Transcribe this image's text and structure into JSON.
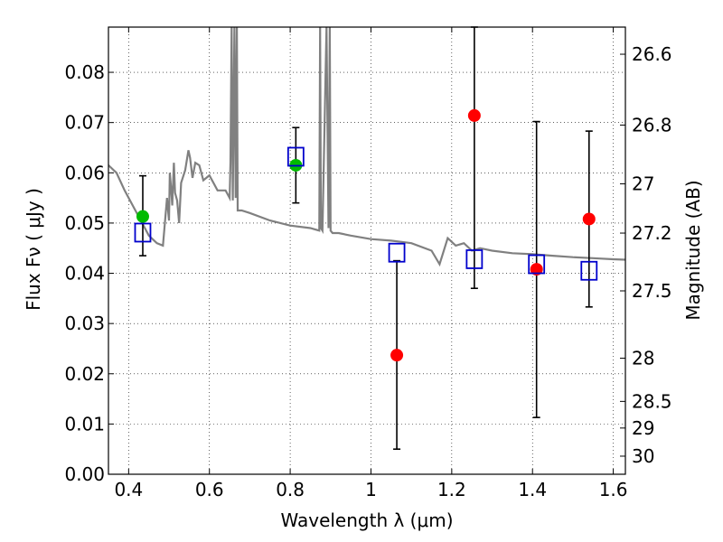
{
  "chart_data": {
    "type": "scatter",
    "xlabel": "Wavelength  λ (μm)",
    "ylabel": "Flux  Fν  ( μJy )",
    "ylabel_right": "Magnitude (AB)",
    "xlim": [
      0.35,
      1.63
    ],
    "ylim": [
      0.0,
      0.089
    ],
    "grid": true,
    "xticks": [
      0.4,
      0.6,
      0.8,
      1.0,
      1.2,
      1.4,
      1.6
    ],
    "xtick_labels": [
      "0.4",
      "0.6",
      "0.8",
      "1",
      "1.2",
      "1.4",
      "1.6"
    ],
    "yticks": [
      0.0,
      0.01,
      0.02,
      0.03,
      0.04,
      0.05,
      0.06,
      0.07,
      0.08
    ],
    "ytick_labels": [
      "0.00",
      "0.01",
      "0.02",
      "0.03",
      "0.04",
      "0.05",
      "0.06",
      "0.07",
      "0.08"
    ],
    "right_ticks": [
      {
        "label": "26.6",
        "flux": 0.0836
      },
      {
        "label": "26.8",
        "flux": 0.0695
      },
      {
        "label": "27",
        "flux": 0.0578
      },
      {
        "label": "27.2",
        "flux": 0.048
      },
      {
        "label": "27.5",
        "flux": 0.0365
      },
      {
        "label": "28",
        "flux": 0.0231
      },
      {
        "label": "28.5",
        "flux": 0.0145
      },
      {
        "label": "29",
        "flux": 0.0092
      },
      {
        "label": "30",
        "flux": 0.0036
      }
    ],
    "colors": {
      "model": "#808080",
      "detections": "#00bb00",
      "other": "#ff0000",
      "model_points": "#0000cc",
      "errorbars": "#000000"
    },
    "series": [
      {
        "marker": "circle",
        "color": "#00bb00",
        "points": [
          {
            "x": 0.435,
            "y": 0.0513,
            "err_low": 0.0435,
            "err_high": 0.0594
          },
          {
            "x": 0.814,
            "y": 0.0615,
            "err_low": 0.054,
            "err_high": 0.069
          }
        ]
      },
      {
        "marker": "circle",
        "color": "#ff0000",
        "points": [
          {
            "x": 1.064,
            "y": 0.0237,
            "err_low": 0.005,
            "err_high": 0.0425
          },
          {
            "x": 1.256,
            "y": 0.0714,
            "err_low": 0.037,
            "err_high": 0.089
          },
          {
            "x": 1.41,
            "y": 0.0408,
            "err_low": 0.0113,
            "err_high": 0.0702
          },
          {
            "x": 1.54,
            "y": 0.0508,
            "err_low": 0.0333,
            "err_high": 0.0683
          }
        ]
      },
      {
        "marker": "square-open",
        "color": "#0000cc",
        "points": [
          {
            "x": 0.435,
            "y": 0.0481
          },
          {
            "x": 0.814,
            "y": 0.0632
          },
          {
            "x": 1.064,
            "y": 0.0441
          },
          {
            "x": 1.256,
            "y": 0.0428
          },
          {
            "x": 1.41,
            "y": 0.0418
          },
          {
            "x": 1.54,
            "y": 0.0405
          }
        ]
      },
      {
        "type": "line",
        "color": "#808080",
        "x": [
          0.35,
          0.37,
          0.39,
          0.41,
          0.43,
          0.45,
          0.47,
          0.485,
          0.495,
          0.5,
          0.502,
          0.505,
          0.508,
          0.512,
          0.515,
          0.52,
          0.525,
          0.53,
          0.54,
          0.548,
          0.552,
          0.558,
          0.565,
          0.575,
          0.585,
          0.6,
          0.62,
          0.64,
          0.65,
          0.652,
          0.655,
          0.658,
          0.662,
          0.665,
          0.668,
          0.67,
          0.68,
          0.7,
          0.75,
          0.8,
          0.85,
          0.872,
          0.874,
          0.876,
          0.88,
          0.89,
          0.895,
          0.898,
          0.9,
          0.905,
          0.92,
          0.95,
          1.0,
          1.05,
          1.1,
          1.15,
          1.17,
          1.19,
          1.21,
          1.23,
          1.25,
          1.27,
          1.3,
          1.35,
          1.4,
          1.45,
          1.5,
          1.55,
          1.6,
          1.63
        ],
        "y": [
          0.0615,
          0.06,
          0.0565,
          0.0535,
          0.0505,
          0.0475,
          0.046,
          0.0455,
          0.055,
          0.0505,
          0.06,
          0.057,
          0.0535,
          0.062,
          0.056,
          0.0545,
          0.05,
          0.058,
          0.0605,
          0.0645,
          0.063,
          0.059,
          0.062,
          0.0615,
          0.0585,
          0.0595,
          0.0565,
          0.0565,
          0.055,
          0.062,
          0.089,
          0.0545,
          0.089,
          0.055,
          0.089,
          0.0525,
          0.0525,
          0.052,
          0.0505,
          0.0495,
          0.049,
          0.0485,
          0.089,
          0.049,
          0.0485,
          0.089,
          0.049,
          0.089,
          0.0485,
          0.048,
          0.048,
          0.0475,
          0.0468,
          0.0465,
          0.046,
          0.0445,
          0.0418,
          0.047,
          0.0455,
          0.046,
          0.0445,
          0.045,
          0.0445,
          0.044,
          0.0438,
          0.0435,
          0.0432,
          0.043,
          0.0428,
          0.0427
        ]
      }
    ]
  }
}
